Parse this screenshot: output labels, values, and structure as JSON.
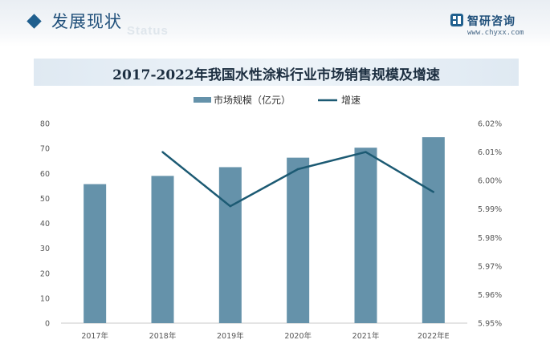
{
  "header": {
    "section_title": "发展现状",
    "section_subtitle": "Status",
    "brand_name": "智研咨询",
    "brand_url": "www.chyxx.com"
  },
  "colors": {
    "bar": "#6592aa",
    "line": "#1c5a73",
    "accent": "#1f5f8e"
  },
  "chart_data": {
    "type": "bar",
    "title": "2017-2022年我国水性涂料行业市场销售规模及增速",
    "categories": [
      "2017年",
      "2018年",
      "2019年",
      "2020年",
      "2021年",
      "2022年E"
    ],
    "series": [
      {
        "name": "市场规模（亿元）",
        "type": "bar",
        "axis": "left",
        "values": [
          55.7,
          59.0,
          62.5,
          66.3,
          70.3,
          74.5
        ]
      },
      {
        "name": "增速",
        "type": "line",
        "axis": "right",
        "values": [
          null,
          6.01,
          5.991,
          6.004,
          6.01,
          5.996
        ]
      }
    ],
    "y_left": {
      "ylim": [
        0,
        80
      ],
      "ticks": [
        0,
        10,
        20,
        30,
        40,
        50,
        60,
        70,
        80
      ]
    },
    "y_right": {
      "ylim": [
        5.95,
        6.02
      ],
      "ticks": [
        5.95,
        5.96,
        5.97,
        5.98,
        5.99,
        6.0,
        6.01,
        6.02
      ],
      "tick_labels": [
        "5.95%",
        "5.96%",
        "5.97%",
        "5.98%",
        "5.99%",
        "6.00%",
        "6.01%",
        "6.02%"
      ]
    },
    "legend": "top",
    "grid": false
  }
}
